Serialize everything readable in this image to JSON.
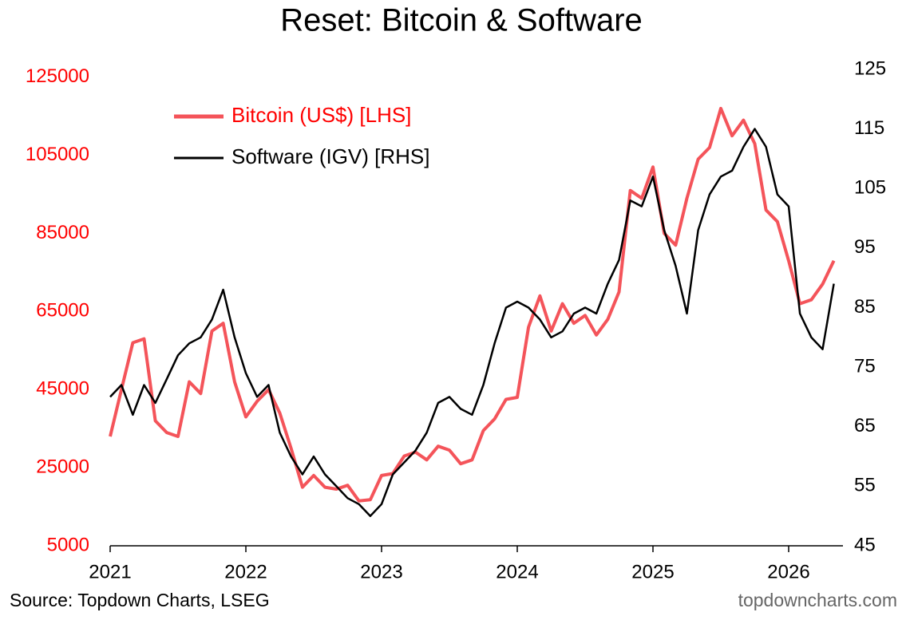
{
  "chart_data": {
    "type": "line",
    "title": "Reset: Bitcoin & Software",
    "source": "Source: Topdown Charts, LSEG",
    "watermark": "topdowncharts.com",
    "x": [
      2021.0,
      2021.083,
      2021.167,
      2021.25,
      2021.333,
      2021.417,
      2021.5,
      2021.583,
      2021.667,
      2021.75,
      2021.833,
      2021.917,
      2022.0,
      2022.083,
      2022.167,
      2022.25,
      2022.333,
      2022.417,
      2022.5,
      2022.583,
      2022.667,
      2022.75,
      2022.833,
      2022.917,
      2023.0,
      2023.083,
      2023.167,
      2023.25,
      2023.333,
      2023.417,
      2023.5,
      2023.583,
      2023.667,
      2023.75,
      2023.833,
      2023.917,
      2024.0,
      2024.083,
      2024.167,
      2024.25,
      2024.333,
      2024.417,
      2024.5,
      2024.583,
      2024.667,
      2024.75,
      2024.833,
      2024.917,
      2025.0,
      2025.083,
      2025.167,
      2025.25,
      2025.333,
      2025.417,
      2025.5,
      2025.583,
      2025.667,
      2025.75,
      2025.833,
      2025.917,
      2026.0,
      2026.083,
      2026.167,
      2026.25,
      2026.333
    ],
    "series": [
      {
        "name": "Bitcoin (US$) [LHS]",
        "color": "#f4545a",
        "axis": "y",
        "values": [
          33000,
          45000,
          57000,
          58000,
          37000,
          34000,
          33000,
          47000,
          44000,
          60000,
          62000,
          47000,
          38000,
          42000,
          45000,
          39000,
          30000,
          20000,
          23000,
          20000,
          19500,
          20500,
          16500,
          16800,
          23000,
          23500,
          28000,
          29000,
          27000,
          30500,
          29500,
          26000,
          27000,
          34500,
          37500,
          42500,
          43000,
          61000,
          69000,
          60000,
          67000,
          62000,
          64000,
          59000,
          63000,
          70000,
          96000,
          94000,
          102000,
          85000,
          82000,
          94000,
          104000,
          107000,
          117000,
          110000,
          114000,
          108000,
          91000,
          88000,
          78000,
          67000,
          68000,
          72000,
          78000
        ]
      },
      {
        "name": "Software (IGV) [RHS]",
        "color": "#000000",
        "axis": "y2",
        "values": [
          70,
          72,
          67,
          72,
          69,
          73,
          77,
          79,
          80,
          83,
          88,
          80,
          74,
          70,
          72,
          64,
          60,
          57,
          60,
          57,
          55,
          53,
          52,
          50,
          52,
          57,
          59,
          61,
          64,
          69,
          70,
          68,
          67,
          72,
          79,
          85,
          86,
          85,
          83,
          80,
          81,
          84,
          85,
          84,
          89,
          93,
          103,
          102,
          107,
          98,
          92,
          84,
          98,
          104,
          107,
          108,
          112,
          115,
          112,
          104,
          102,
          84,
          80,
          78,
          89
        ]
      }
    ],
    "xlim": [
      2021,
      2026.4
    ],
    "xticks": [
      2021,
      2022,
      2023,
      2024,
      2025,
      2026
    ],
    "ylim": [
      5000,
      127000
    ],
    "yticks": [
      5000,
      25000,
      45000,
      65000,
      85000,
      105000,
      125000
    ],
    "y2lim": [
      45,
      125
    ],
    "y2ticks": [
      45,
      55,
      65,
      75,
      85,
      95,
      105,
      115,
      125
    ],
    "ytick_color": "#ff0000",
    "legend": "upper left",
    "grid": false
  }
}
